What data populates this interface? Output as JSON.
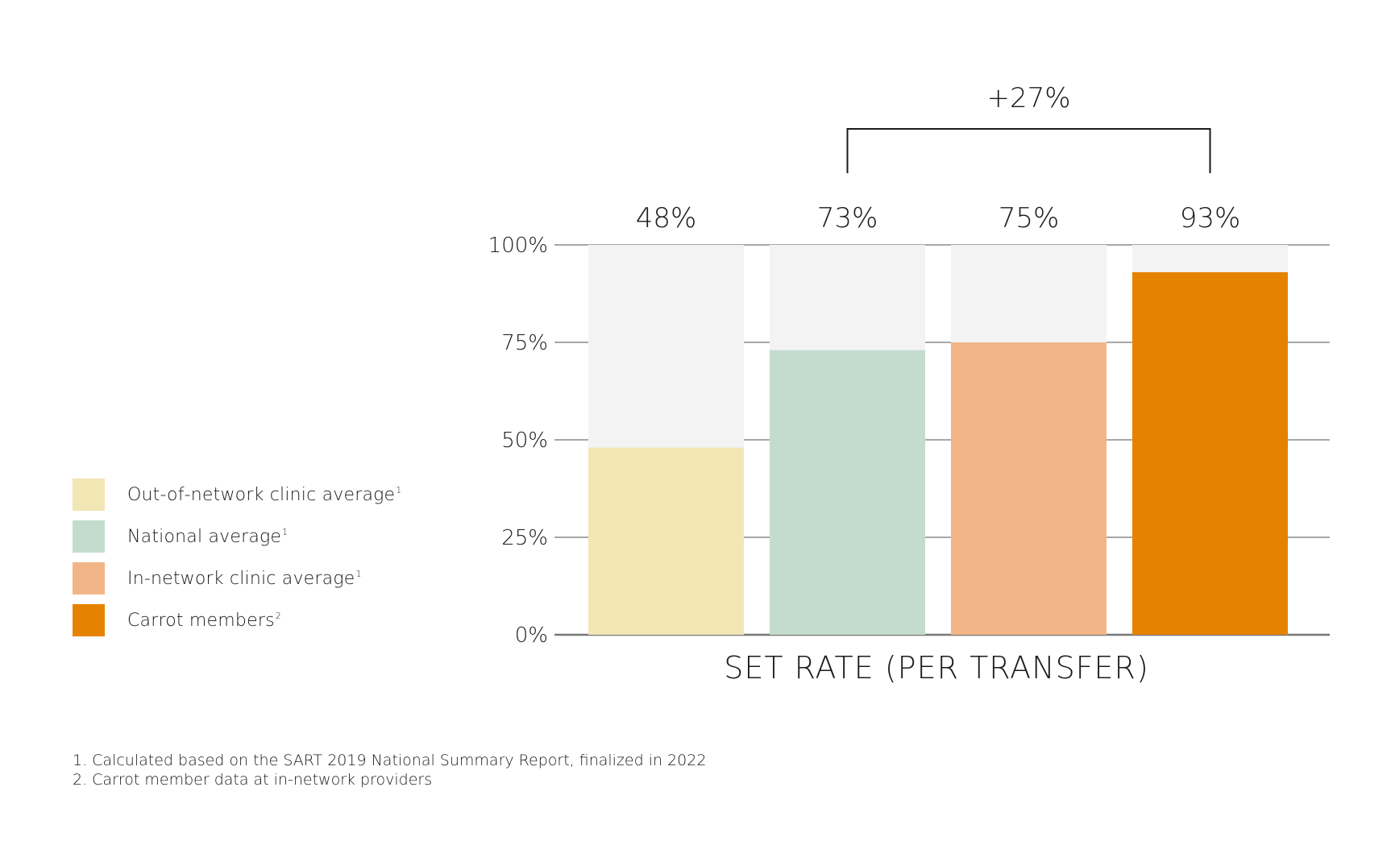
{
  "chart_data": {
    "type": "bar",
    "categories": [
      "Out-of-network clinic average",
      "National average",
      "In-network clinic average",
      "Carrot members"
    ],
    "series": [
      {
        "values": [
          48,
          73,
          75,
          93
        ]
      }
    ],
    "value_labels": [
      "48%",
      "73%",
      "75%",
      "93%"
    ],
    "bar_colors": [
      "#f3e6b5",
      "#c3dccd",
      "#f2b588",
      "#e58300"
    ],
    "background_bar_color": "#f3f3f3",
    "xlabel": "SET RATE (PER TRANSFER)",
    "ylabel": "",
    "ylim": [
      0,
      100
    ],
    "y_ticks": [
      0,
      25,
      50,
      75,
      100
    ],
    "y_tick_labels": [
      "0%",
      "25%",
      "50%",
      "75%",
      "100%"
    ],
    "grid": true,
    "annotation": {
      "text": "+27%",
      "from_category": 1,
      "to_category": 3
    },
    "legend": {
      "position": "left",
      "items": [
        {
          "label": "Out-of-network clinic average",
          "note": "1",
          "color": "#f3e6b5"
        },
        {
          "label": "National average",
          "note": "1",
          "color": "#c3dccd"
        },
        {
          "label": "In-network clinic average",
          "note": "1",
          "color": "#f2b588"
        },
        {
          "label": "Carrot members",
          "note": "2",
          "color": "#e58300"
        }
      ]
    }
  },
  "footnotes": [
    "1. Calculated based on the SART 2019 National Summary Report, finalized in 2022",
    "2. Carrot member data at in-network providers"
  ]
}
